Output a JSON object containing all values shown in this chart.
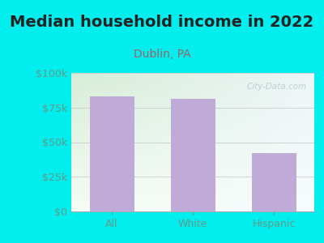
{
  "title": "Median household income in 2022",
  "subtitle": "Dublin, PA",
  "categories": [
    "All",
    "White",
    "Hispanic"
  ],
  "values": [
    83000,
    81000,
    42000
  ],
  "bar_color": "#c0aad8",
  "bg_color": "#00eeee",
  "plot_bg_top_color": "#d8edd8",
  "plot_bg_bottom_color": "#f5faf5",
  "plot_bg_right_color": "#e8eef0",
  "title_color": "#222222",
  "subtitle_color": "#996666",
  "tick_label_color": "#669988",
  "watermark": "City-Data.com",
  "ylim": [
    0,
    100000
  ],
  "yticks": [
    0,
    25000,
    50000,
    75000,
    100000
  ],
  "ytick_labels": [
    "$0",
    "$25k",
    "$50k",
    "$75k",
    "$100k"
  ],
  "title_fontsize": 14,
  "subtitle_fontsize": 10,
  "tick_fontsize": 9
}
